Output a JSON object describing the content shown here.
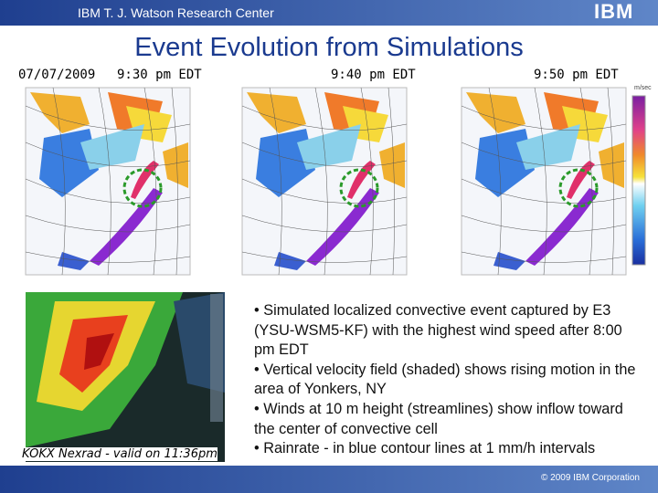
{
  "header": {
    "org": "IBM T. J. Watson Research Center",
    "logo": "IBM"
  },
  "title": "Event Evolution from Simulations",
  "date": "07/07/2009",
  "panels": [
    {
      "label": "9:30 pm EDT"
    },
    {
      "label": "9:40 pm EDT"
    },
    {
      "label": "9:50 pm EDT"
    }
  ],
  "colorbar_unit": "m/sec",
  "radar_caption": "KOKX Nexrad - valid on 11:36pm",
  "bullets": [
    "• Simulated localized convective event captured by E3 (YSU-WSM5-KF) with the highest wind speed after 8:00 pm EDT",
    "• Vertical velocity field (shaded) shows rising motion in the area of Yonkers, NY",
    "•  Winds at 10 m height (streamlines) show inflow toward the center of convective cell",
    "•  Rainrate - in blue contour lines at 1 mm/h intervals"
  ],
  "footer": "© 2009 IBM Corporation"
}
